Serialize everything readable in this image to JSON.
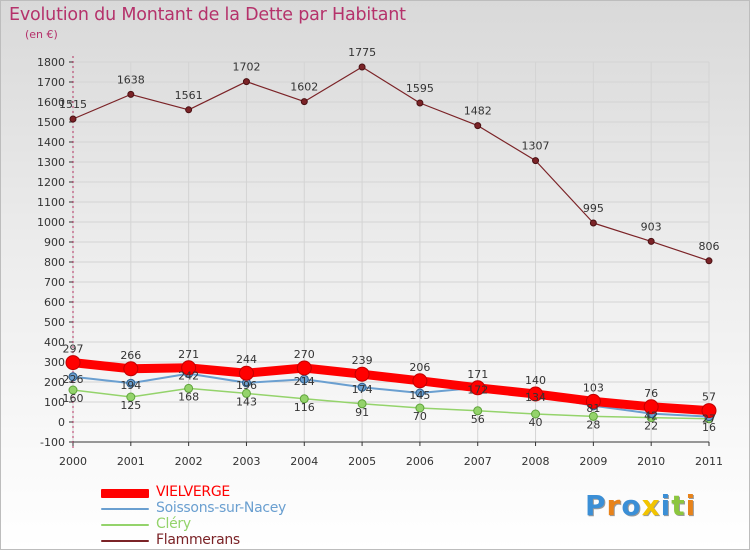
{
  "header": {
    "title": "Evolution du Montant de la Dette par Habitant",
    "unit": "(en €)"
  },
  "colors": {
    "title": "#b5326b",
    "grid": "#d4d4d4",
    "axis": "#333333",
    "text": "#333333"
  },
  "chart_data": {
    "type": "line",
    "title": "Evolution du Montant de la Dette par Habitant",
    "subtitle": "(en €)",
    "xlabel": "",
    "ylabel": "",
    "x": [
      "2000",
      "2001",
      "2002",
      "2003",
      "2004",
      "2005",
      "2006",
      "2007",
      "2008",
      "2009",
      "2010",
      "2011"
    ],
    "ylim": [
      -100,
      1800
    ],
    "yticks": [
      -100,
      0,
      100,
      200,
      300,
      400,
      500,
      600,
      700,
      800,
      900,
      1000,
      1100,
      1200,
      1300,
      1400,
      1500,
      1600,
      1700,
      1800
    ],
    "grid": true,
    "legend_position": "bottom-left",
    "series": [
      {
        "name": "VIELVERGE",
        "color": "#ff0000",
        "values": [
          297,
          266,
          271,
          244,
          270,
          239,
          206,
          171,
          140,
          103,
          76,
          57
        ],
        "labels": [
          "297",
          "266",
          "271",
          "244",
          "270",
          "239",
          "206",
          "171",
          "140",
          "103",
          "76",
          "57"
        ]
      },
      {
        "name": "Soissons-sur-Nacey",
        "color": "#6a9fd0",
        "values": [
          226,
          194,
          242,
          196,
          214,
          174,
          145,
          172,
          134,
          81,
          42,
          27
        ],
        "labels": [
          "226",
          "194",
          "242",
          "196",
          "214",
          "174",
          "145",
          "172",
          "134",
          "81",
          "42",
          "27"
        ]
      },
      {
        "name": "Cléry",
        "color": "#94d36b",
        "values": [
          160,
          125,
          168,
          143,
          116,
          91,
          70,
          56,
          40,
          28,
          22,
          16
        ],
        "labels": [
          "160",
          "125",
          "168",
          "143",
          "116",
          "91",
          "70",
          "56",
          "40",
          "28",
          "22",
          "16"
        ]
      },
      {
        "name": "Flammerans",
        "color": "#7b2327",
        "values": [
          1515,
          1638,
          1561,
          1702,
          1602,
          1775,
          1595,
          1482,
          1307,
          995,
          903,
          806
        ],
        "labels": [
          "1515",
          "1638",
          "1561",
          "1702",
          "1602",
          "1775",
          "1595",
          "1482",
          "1307",
          "995",
          "903",
          "806"
        ]
      }
    ]
  },
  "logo": {
    "text": "Proxiti",
    "colors": [
      "#3b8fd6",
      "#e8831a",
      "#3b8fd6",
      "#f2c400",
      "#3b8fd6",
      "#8cc63f",
      "#e8831a"
    ]
  }
}
